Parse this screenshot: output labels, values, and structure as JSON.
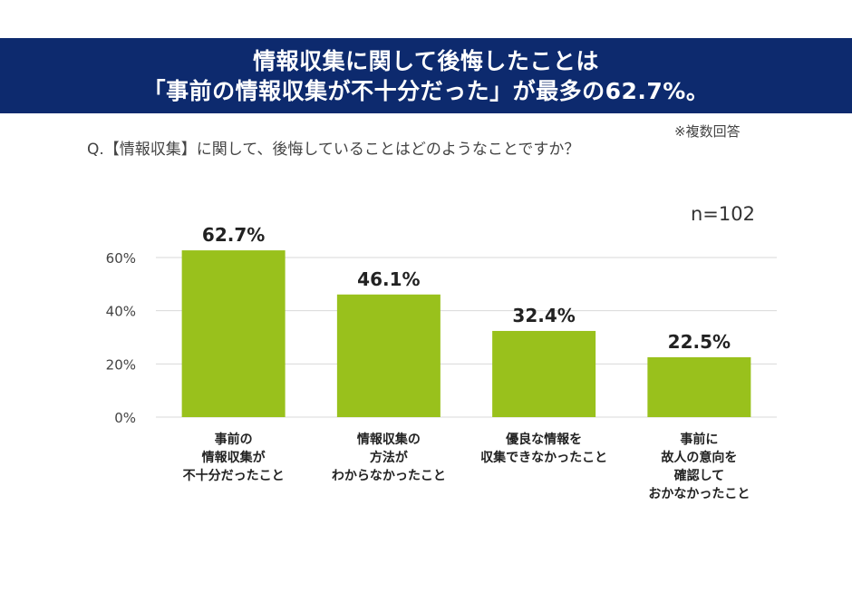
{
  "header": {
    "title_line1": "情報収集に関して後悔したことは",
    "title_line2": "「事前の情報収集が不十分だった」が最多の62.7%。",
    "background_color": "#0d2a6e"
  },
  "note": "※複数回答",
  "question": "Q.【情報収集】に関して、後悔していることはどのようなことですか？",
  "sample_size": "n=102",
  "chart_data": {
    "type": "bar",
    "categories": [
      [
        "事前の",
        "情報収集が",
        "不十分だったこと"
      ],
      [
        "情報収集の",
        "方法が",
        "わからなかったこと"
      ],
      [
        "優良な情報を",
        "収集できなかったこと"
      ],
      [
        "事前に",
        "故人の意向を",
        "確認して",
        "おかなかったこと"
      ]
    ],
    "values": [
      62.7,
      46.1,
      32.4,
      22.5
    ],
    "value_labels": [
      "62.7%",
      "46.1%",
      "32.4%",
      "22.5%"
    ],
    "yticks": [
      0,
      20,
      40,
      60
    ],
    "ytick_labels": [
      "0%",
      "20%",
      "40%",
      "60%"
    ],
    "ylim": [
      0,
      60
    ],
    "grid": true,
    "bar_color": "#99c11c",
    "grid_color": "#d9d9d9"
  }
}
